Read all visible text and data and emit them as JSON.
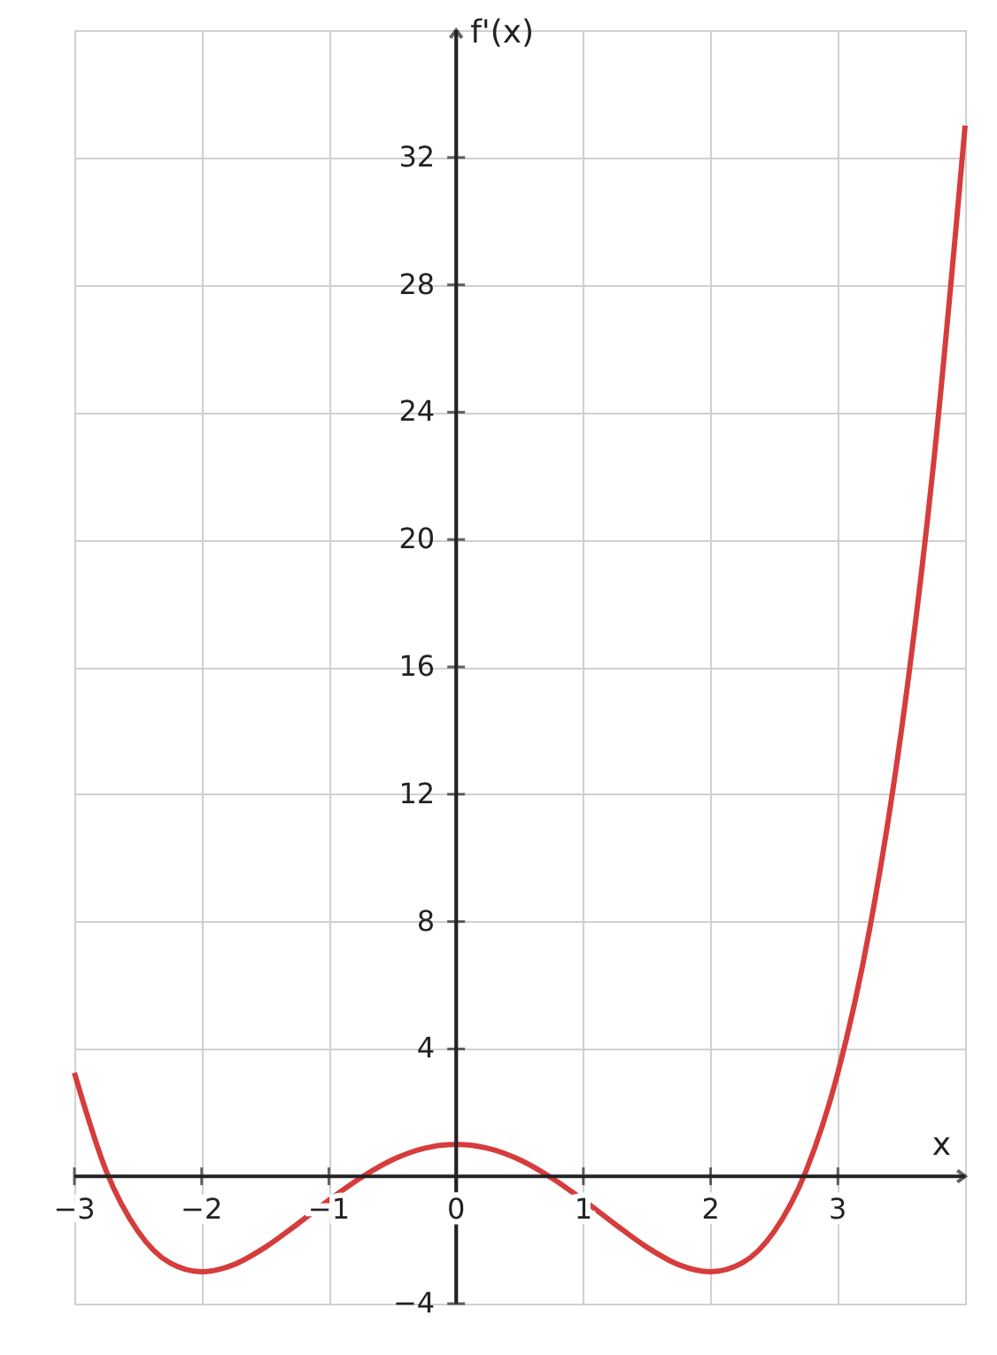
{
  "chart_data": {
    "type": "line",
    "xlabel": "x",
    "ylabel": "f'(x)",
    "x": [
      -3,
      -2.75,
      -2.5,
      -2.25,
      -2,
      -1.75,
      -1.5,
      -1.25,
      -1,
      -0.75,
      -0.5,
      -0.25,
      0,
      0.25,
      0.5,
      0.75,
      1,
      1.25,
      1.5,
      1.75,
      2,
      2.25,
      2.5,
      2.75,
      3,
      3.25,
      3.5,
      3.75,
      4
    ],
    "series": [
      {
        "color": "#d63c3c",
        "values": [
          3.25,
          0.17,
          -1.73,
          -2.72,
          -3,
          -2.78,
          -2.23,
          -1.51,
          -0.75,
          -0.05,
          0.52,
          0.88,
          1,
          0.88,
          0.52,
          -0.05,
          -0.75,
          -1.51,
          -2.23,
          -2.78,
          -3,
          -2.72,
          -1.73,
          0.17,
          3.25,
          7.77,
          14.02,
          22.31,
          33
        ]
      }
    ],
    "xlim": [
      -3,
      4
    ],
    "ylim": [
      -4,
      36
    ],
    "xticks": [
      -3,
      -2,
      -1,
      0,
      1,
      2,
      3,
      {
        "value": 4,
        "label": null
      }
    ],
    "yticks": [
      -4,
      4,
      8,
      12,
      16,
      20,
      24,
      28,
      32,
      {
        "value": 36,
        "label": null
      }
    ],
    "grid": true,
    "marker": "none",
    "line_style": "solid"
  }
}
